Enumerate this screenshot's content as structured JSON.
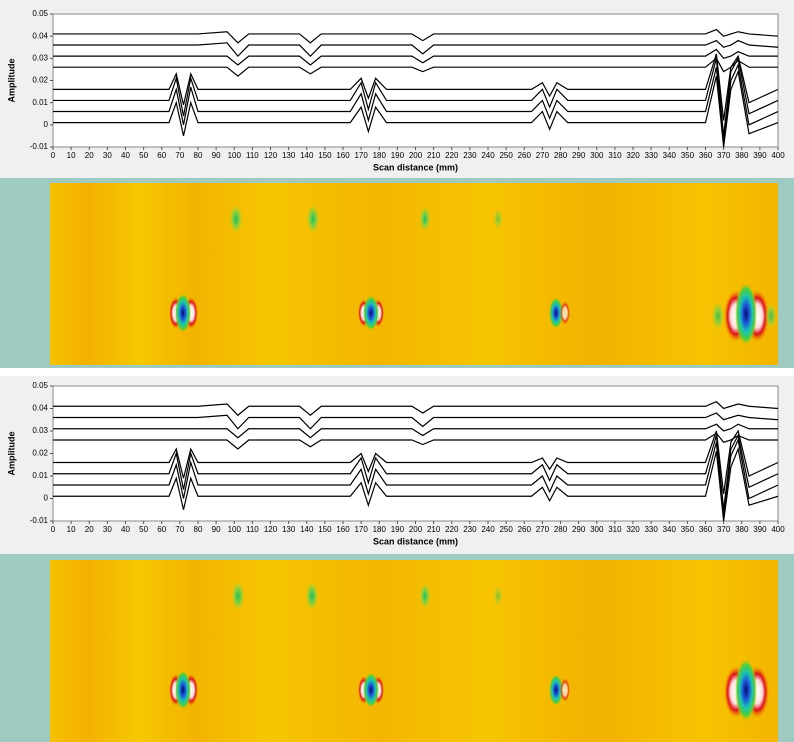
{
  "chart_data": [
    {
      "type": "line",
      "xlabel": "Scan distance (mm)",
      "ylabel": "Amplitude",
      "xlim": [
        0,
        400
      ],
      "ylim": [
        -0.01,
        0.05
      ],
      "xticks": [
        0,
        10,
        20,
        30,
        40,
        50,
        60,
        70,
        80,
        90,
        100,
        110,
        120,
        130,
        140,
        150,
        160,
        170,
        180,
        190,
        200,
        210,
        220,
        230,
        240,
        250,
        260,
        270,
        280,
        290,
        300,
        310,
        320,
        330,
        340,
        350,
        360,
        370,
        380,
        390,
        400
      ],
      "yticks": [
        -0.01,
        0,
        0.01,
        0.02,
        0.03,
        0.04,
        0.05
      ],
      "x": [
        0,
        64,
        68,
        72,
        76,
        80,
        96,
        102,
        108,
        136,
        142,
        148,
        164,
        170,
        174,
        178,
        184,
        198,
        204,
        210,
        264,
        270,
        274,
        278,
        284,
        360,
        366,
        370,
        374,
        378,
        384,
        400
      ],
      "series": [
        {
          "color": "#000000",
          "values": [
            0.001,
            0.001,
            0.01,
            -0.005,
            0.01,
            0.001,
            0.001,
            0.001,
            0.001,
            0.001,
            0.001,
            0.001,
            0.001,
            0.008,
            -0.003,
            0.008,
            0.001,
            0.001,
            0.001,
            0.001,
            0.001,
            0.006,
            -0.002,
            0.006,
            0.001,
            0.001,
            0.022,
            -0.01,
            0.016,
            0.024,
            -0.004,
            0.001
          ]
        },
        {
          "color": "#000000",
          "values": [
            0.006,
            0.006,
            0.016,
            0.0,
            0.017,
            0.006,
            0.006,
            0.006,
            0.006,
            0.006,
            0.006,
            0.006,
            0.006,
            0.014,
            0.002,
            0.014,
            0.006,
            0.006,
            0.006,
            0.006,
            0.006,
            0.011,
            0.003,
            0.011,
            0.006,
            0.006,
            0.026,
            -0.008,
            0.02,
            0.027,
            0.0,
            0.006
          ]
        },
        {
          "color": "#000000",
          "values": [
            0.011,
            0.011,
            0.021,
            0.004,
            0.021,
            0.011,
            0.011,
            0.011,
            0.011,
            0.011,
            0.011,
            0.011,
            0.011,
            0.019,
            0.007,
            0.019,
            0.011,
            0.011,
            0.011,
            0.011,
            0.011,
            0.016,
            0.008,
            0.016,
            0.011,
            0.011,
            0.03,
            -0.005,
            0.024,
            0.03,
            0.005,
            0.011
          ]
        },
        {
          "color": "#000000",
          "values": [
            0.016,
            0.016,
            0.023,
            0.009,
            0.023,
            0.016,
            0.016,
            0.016,
            0.016,
            0.016,
            0.016,
            0.016,
            0.016,
            0.021,
            0.012,
            0.021,
            0.016,
            0.016,
            0.016,
            0.016,
            0.016,
            0.019,
            0.013,
            0.019,
            0.016,
            0.016,
            0.032,
            0.002,
            0.026,
            0.031,
            0.01,
            0.016
          ]
        },
        {
          "color": "#000000",
          "values": [
            0.026,
            0.026,
            0.026,
            0.026,
            0.026,
            0.026,
            0.026,
            0.022,
            0.026,
            0.026,
            0.023,
            0.026,
            0.026,
            0.026,
            0.026,
            0.026,
            0.026,
            0.026,
            0.024,
            0.026,
            0.026,
            0.026,
            0.026,
            0.026,
            0.026,
            0.026,
            0.03,
            0.024,
            0.026,
            0.029,
            0.026,
            0.026
          ]
        },
        {
          "color": "#000000",
          "values": [
            0.031,
            0.031,
            0.031,
            0.031,
            0.031,
            0.031,
            0.031,
            0.027,
            0.031,
            0.031,
            0.027,
            0.031,
            0.031,
            0.031,
            0.031,
            0.031,
            0.031,
            0.031,
            0.028,
            0.031,
            0.031,
            0.031,
            0.031,
            0.031,
            0.031,
            0.031,
            0.034,
            0.03,
            0.031,
            0.033,
            0.031,
            0.031
          ]
        },
        {
          "color": "#000000",
          "values": [
            0.036,
            0.036,
            0.036,
            0.036,
            0.036,
            0.036,
            0.037,
            0.031,
            0.036,
            0.036,
            0.031,
            0.036,
            0.036,
            0.036,
            0.036,
            0.036,
            0.036,
            0.036,
            0.032,
            0.036,
            0.036,
            0.036,
            0.036,
            0.036,
            0.036,
            0.036,
            0.038,
            0.035,
            0.036,
            0.038,
            0.036,
            0.035
          ]
        },
        {
          "color": "#000000",
          "values": [
            0.041,
            0.041,
            0.041,
            0.041,
            0.041,
            0.041,
            0.042,
            0.037,
            0.041,
            0.041,
            0.037,
            0.041,
            0.041,
            0.041,
            0.041,
            0.041,
            0.041,
            0.041,
            0.038,
            0.041,
            0.041,
            0.041,
            0.041,
            0.041,
            0.041,
            0.041,
            0.043,
            0.04,
            0.041,
            0.042,
            0.041,
            0.04
          ]
        }
      ]
    },
    {
      "type": "line",
      "xlabel": "Scan distance (mm)",
      "ylabel": "Amplitude",
      "xlim": [
        0,
        400
      ],
      "ylim": [
        -0.01,
        0.05
      ],
      "xticks": [
        0,
        10,
        20,
        30,
        40,
        50,
        60,
        70,
        80,
        90,
        100,
        110,
        120,
        130,
        140,
        150,
        160,
        170,
        180,
        190,
        200,
        210,
        220,
        230,
        240,
        250,
        260,
        270,
        280,
        290,
        300,
        310,
        320,
        330,
        340,
        350,
        360,
        370,
        380,
        390,
        400
      ],
      "yticks": [
        -0.01,
        0,
        0.01,
        0.02,
        0.03,
        0.04,
        0.05
      ],
      "x": [
        0,
        64,
        68,
        72,
        76,
        80,
        96,
        102,
        108,
        136,
        142,
        148,
        164,
        170,
        174,
        178,
        184,
        198,
        204,
        210,
        264,
        270,
        274,
        278,
        284,
        360,
        366,
        370,
        374,
        378,
        384,
        400
      ],
      "series": [
        {
          "color": "#000000",
          "values": [
            0.001,
            0.001,
            0.009,
            -0.005,
            0.009,
            0.001,
            0.001,
            0.001,
            0.001,
            0.001,
            0.001,
            0.001,
            0.001,
            0.007,
            -0.003,
            0.007,
            0.001,
            0.001,
            0.001,
            0.001,
            0.001,
            0.005,
            -0.001,
            0.005,
            0.001,
            0.001,
            0.021,
            -0.01,
            0.014,
            0.022,
            -0.003,
            0.001
          ]
        },
        {
          "color": "#000000",
          "values": [
            0.006,
            0.006,
            0.015,
            0.0,
            0.016,
            0.006,
            0.006,
            0.006,
            0.006,
            0.006,
            0.006,
            0.006,
            0.006,
            0.013,
            0.002,
            0.013,
            0.006,
            0.006,
            0.006,
            0.006,
            0.006,
            0.01,
            0.003,
            0.01,
            0.006,
            0.006,
            0.025,
            -0.008,
            0.019,
            0.026,
            0.0,
            0.006
          ]
        },
        {
          "color": "#000000",
          "values": [
            0.011,
            0.011,
            0.02,
            0.004,
            0.02,
            0.011,
            0.011,
            0.011,
            0.011,
            0.011,
            0.011,
            0.011,
            0.011,
            0.018,
            0.007,
            0.018,
            0.011,
            0.011,
            0.011,
            0.011,
            0.011,
            0.015,
            0.008,
            0.015,
            0.011,
            0.011,
            0.028,
            -0.005,
            0.022,
            0.028,
            0.005,
            0.011
          ]
        },
        {
          "color": "#000000",
          "values": [
            0.016,
            0.016,
            0.022,
            0.009,
            0.022,
            0.016,
            0.016,
            0.016,
            0.016,
            0.016,
            0.016,
            0.016,
            0.016,
            0.02,
            0.012,
            0.02,
            0.016,
            0.016,
            0.016,
            0.016,
            0.016,
            0.018,
            0.013,
            0.018,
            0.016,
            0.016,
            0.03,
            0.002,
            0.025,
            0.03,
            0.01,
            0.016
          ]
        },
        {
          "color": "#000000",
          "values": [
            0.026,
            0.026,
            0.026,
            0.026,
            0.026,
            0.026,
            0.026,
            0.022,
            0.026,
            0.026,
            0.023,
            0.026,
            0.026,
            0.026,
            0.026,
            0.026,
            0.026,
            0.026,
            0.024,
            0.026,
            0.026,
            0.026,
            0.026,
            0.026,
            0.026,
            0.026,
            0.029,
            0.025,
            0.026,
            0.028,
            0.026,
            0.026
          ]
        },
        {
          "color": "#000000",
          "values": [
            0.031,
            0.031,
            0.031,
            0.031,
            0.031,
            0.031,
            0.031,
            0.027,
            0.031,
            0.031,
            0.027,
            0.031,
            0.031,
            0.031,
            0.031,
            0.031,
            0.031,
            0.031,
            0.028,
            0.031,
            0.031,
            0.031,
            0.031,
            0.031,
            0.031,
            0.031,
            0.033,
            0.03,
            0.031,
            0.033,
            0.031,
            0.031
          ]
        },
        {
          "color": "#000000",
          "values": [
            0.036,
            0.036,
            0.036,
            0.036,
            0.036,
            0.036,
            0.037,
            0.031,
            0.036,
            0.036,
            0.031,
            0.036,
            0.036,
            0.036,
            0.036,
            0.036,
            0.036,
            0.036,
            0.032,
            0.036,
            0.036,
            0.036,
            0.036,
            0.036,
            0.036,
            0.036,
            0.038,
            0.035,
            0.036,
            0.037,
            0.036,
            0.035
          ]
        },
        {
          "color": "#000000",
          "values": [
            0.041,
            0.041,
            0.041,
            0.041,
            0.041,
            0.041,
            0.042,
            0.037,
            0.041,
            0.041,
            0.037,
            0.041,
            0.041,
            0.041,
            0.041,
            0.041,
            0.041,
            0.041,
            0.038,
            0.041,
            0.041,
            0.041,
            0.041,
            0.041,
            0.041,
            0.041,
            0.043,
            0.04,
            0.041,
            0.042,
            0.041,
            0.04
          ]
        }
      ]
    }
  ]
}
